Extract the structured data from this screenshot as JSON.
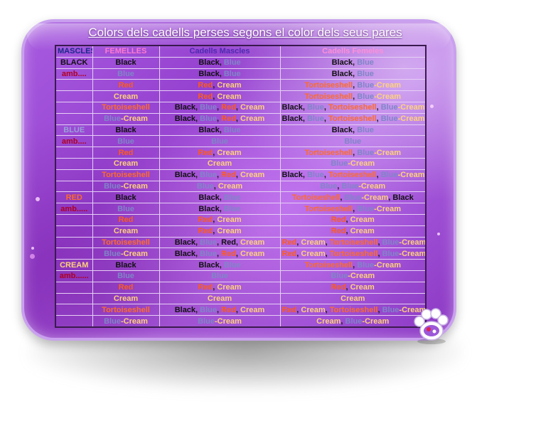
{
  "title": "Colors dels cadells perses segons el color dels seus pares",
  "headers": [
    "MASCLES",
    "FEMELLES",
    "Cadells Mascles",
    "Cadells Femeles"
  ],
  "rows": [
    [
      [
        {
          "t": "BLACK",
          "c": "blackhdr"
        }
      ],
      [
        {
          "t": "Black",
          "c": "black"
        }
      ],
      [
        {
          "t": "Black",
          "c": "black"
        },
        {
          "t": ", ",
          "c": "sep"
        },
        {
          "t": "Blue",
          "c": "blue"
        }
      ],
      [
        {
          "t": "Black",
          "c": "black"
        },
        {
          "t": ", ",
          "c": "sep"
        },
        {
          "t": "Blue",
          "c": "blue"
        }
      ]
    ],
    [
      [
        {
          "t": "amb....",
          "c": "amb"
        }
      ],
      [
        {
          "t": "Blue",
          "c": "blue"
        }
      ],
      [
        {
          "t": "Black",
          "c": "black"
        },
        {
          "t": ", ",
          "c": "sep"
        },
        {
          "t": "Blue",
          "c": "blue"
        }
      ],
      [
        {
          "t": "Black",
          "c": "black"
        },
        {
          "t": ", ",
          "c": "sep"
        },
        {
          "t": "Blue",
          "c": "blue"
        }
      ]
    ],
    [
      [],
      [
        {
          "t": "Red",
          "c": "red"
        }
      ],
      [
        {
          "t": "Red",
          "c": "red"
        },
        {
          "t": ", ",
          "c": "sep"
        },
        {
          "t": "Cream",
          "c": "cream"
        }
      ],
      [
        {
          "t": "Tortoiseshell",
          "c": "tort"
        },
        {
          "t": ", ",
          "c": "sep"
        },
        {
          "t": "Blue",
          "c": "blue"
        },
        {
          "t": "-",
          "c": "cream"
        },
        {
          "t": "Cream",
          "c": "cream"
        }
      ]
    ],
    [
      [],
      [
        {
          "t": "Cream",
          "c": "cream"
        }
      ],
      [
        {
          "t": "Red",
          "c": "red"
        },
        {
          "t": ", ",
          "c": "sep"
        },
        {
          "t": "Cream",
          "c": "cream"
        }
      ],
      [
        {
          "t": "Tortoiseshell",
          "c": "tort"
        },
        {
          "t": ", ",
          "c": "sep"
        },
        {
          "t": "Blue",
          "c": "blue"
        },
        {
          "t": "-",
          "c": "cream"
        },
        {
          "t": "Cream",
          "c": "cream"
        }
      ]
    ],
    [
      [],
      [
        {
          "t": "Tortoiseshell",
          "c": "tort"
        }
      ],
      [
        {
          "t": "Black",
          "c": "black"
        },
        {
          "t": ", ",
          "c": "sep"
        },
        {
          "t": "Blue",
          "c": "blue"
        },
        {
          "t": ", ",
          "c": "sep"
        },
        {
          "t": "Red",
          "c": "red"
        },
        {
          "t": ", ",
          "c": "sep"
        },
        {
          "t": "Cream",
          "c": "cream"
        }
      ],
      [
        {
          "t": "Black",
          "c": "black"
        },
        {
          "t": ", ",
          "c": "sep"
        },
        {
          "t": "Blue",
          "c": "blue"
        },
        {
          "t": ", ",
          "c": "sep"
        },
        {
          "t": "Tortoiseshell",
          "c": "tort"
        },
        {
          "t": ", ",
          "c": "sep"
        },
        {
          "t": "Blue",
          "c": "blue"
        },
        {
          "t": "-",
          "c": "cream"
        },
        {
          "t": "Cream",
          "c": "cream"
        }
      ]
    ],
    [
      [],
      [
        {
          "t": "Blue",
          "c": "blue"
        },
        {
          "t": "-",
          "c": "cream"
        },
        {
          "t": "Cream",
          "c": "cream"
        }
      ],
      [
        {
          "t": "Black",
          "c": "black"
        },
        {
          "t": ", ",
          "c": "sep"
        },
        {
          "t": "Blue",
          "c": "blue"
        },
        {
          "t": ", ",
          "c": "sep"
        },
        {
          "t": "Red",
          "c": "red"
        },
        {
          "t": ", ",
          "c": "sep"
        },
        {
          "t": "Cream",
          "c": "cream"
        }
      ],
      [
        {
          "t": "Black",
          "c": "black"
        },
        {
          "t": ", ",
          "c": "sep"
        },
        {
          "t": "Blue",
          "c": "blue"
        },
        {
          "t": ", ",
          "c": "sep"
        },
        {
          "t": "Tortoiseshell",
          "c": "tort"
        },
        {
          "t": ", ",
          "c": "sep"
        },
        {
          "t": "Blue",
          "c": "blue"
        },
        {
          "t": "-",
          "c": "cream"
        },
        {
          "t": "Cream",
          "c": "cream"
        }
      ]
    ],
    [
      [
        {
          "t": "BLUE",
          "c": "bluehdr"
        }
      ],
      [
        {
          "t": "Black",
          "c": "black"
        }
      ],
      [
        {
          "t": "Black",
          "c": "black"
        },
        {
          "t": ", ",
          "c": "sep"
        },
        {
          "t": "Blue",
          "c": "blue"
        }
      ],
      [
        {
          "t": "Black",
          "c": "black"
        },
        {
          "t": ", ",
          "c": "sep"
        },
        {
          "t": "Blue",
          "c": "blue"
        }
      ]
    ],
    [
      [
        {
          "t": "amb....",
          "c": "amb"
        }
      ],
      [
        {
          "t": "Blue",
          "c": "blue"
        }
      ],
      [
        {
          "t": "Blue",
          "c": "blue"
        }
      ],
      [
        {
          "t": "Blue",
          "c": "blue"
        }
      ]
    ],
    [
      [],
      [
        {
          "t": "Red",
          "c": "red"
        }
      ],
      [
        {
          "t": "Red",
          "c": "red"
        },
        {
          "t": ", ",
          "c": "sep"
        },
        {
          "t": "Cream",
          "c": "cream"
        }
      ],
      [
        {
          "t": "Tortoiseshell",
          "c": "tort"
        },
        {
          "t": ", ",
          "c": "sep"
        },
        {
          "t": "Blue",
          "c": "blue"
        },
        {
          "t": "-",
          "c": "cream"
        },
        {
          "t": "Cream",
          "c": "cream"
        }
      ]
    ],
    [
      [],
      [
        {
          "t": "Cream",
          "c": "cream"
        }
      ],
      [
        {
          "t": "Cream",
          "c": "cream"
        }
      ],
      [
        {
          "t": "Blue",
          "c": "blue"
        },
        {
          "t": "-",
          "c": "cream"
        },
        {
          "t": "Cream",
          "c": "cream"
        }
      ]
    ],
    [
      [],
      [
        {
          "t": "Tortoiseshell",
          "c": "tort"
        }
      ],
      [
        {
          "t": "Black",
          "c": "black"
        },
        {
          "t": ", ",
          "c": "sep"
        },
        {
          "t": "Blue",
          "c": "blue"
        },
        {
          "t": ", ",
          "c": "sep"
        },
        {
          "t": "Red",
          "c": "red"
        },
        {
          "t": ", ",
          "c": "sep"
        },
        {
          "t": "Cream",
          "c": "cream"
        }
      ],
      [
        {
          "t": "Black",
          "c": "black"
        },
        {
          "t": ", ",
          "c": "sep"
        },
        {
          "t": "Blue",
          "c": "blue"
        },
        {
          "t": ", ",
          "c": "sep"
        },
        {
          "t": "Tortoiseshell",
          "c": "tort"
        },
        {
          "t": ", ",
          "c": "sep"
        },
        {
          "t": "Blue",
          "c": "blue"
        },
        {
          "t": "-",
          "c": "cream"
        },
        {
          "t": "Cream",
          "c": "cream"
        }
      ]
    ],
    [
      [],
      [
        {
          "t": "Blue",
          "c": "blue"
        },
        {
          "t": "-",
          "c": "cream"
        },
        {
          "t": "Cream",
          "c": "cream"
        }
      ],
      [
        {
          "t": "Blue",
          "c": "blue"
        },
        {
          "t": ", ",
          "c": "sep"
        },
        {
          "t": "Cream",
          "c": "cream"
        }
      ],
      [
        {
          "t": "Blue",
          "c": "blue"
        },
        {
          "t": ", ",
          "c": "sep"
        },
        {
          "t": "Blue",
          "c": "blue"
        },
        {
          "t": "-",
          "c": "cream"
        },
        {
          "t": "Cream",
          "c": "cream"
        }
      ]
    ],
    [
      [
        {
          "t": "RED",
          "c": "redhdr"
        }
      ],
      [
        {
          "t": "Black",
          "c": "black"
        }
      ],
      [
        {
          "t": "Black",
          "c": "black"
        },
        {
          "t": ", ",
          "c": "sep"
        },
        {
          "t": "Blue",
          "c": "blue"
        }
      ],
      [
        {
          "t": "Tortoiseshell",
          "c": "tort"
        },
        {
          "t": ", ",
          "c": "sep"
        },
        {
          "t": "Blue",
          "c": "blue"
        },
        {
          "t": "-",
          "c": "cream"
        },
        {
          "t": "Cream",
          "c": "cream"
        },
        {
          "t": ", ",
          "c": "sep"
        },
        {
          "t": "Black",
          "c": "black"
        }
      ]
    ],
    [
      [
        {
          "t": "amb.....",
          "c": "amb"
        }
      ],
      [
        {
          "t": "Blue",
          "c": "blue"
        }
      ],
      [
        {
          "t": "Black",
          "c": "black"
        },
        {
          "t": ", ",
          "c": "sep"
        },
        {
          "t": "Blue",
          "c": "blue"
        }
      ],
      [
        {
          "t": "Tortoiseshell",
          "c": "tort"
        },
        {
          "t": ", ",
          "c": "sep"
        },
        {
          "t": "Blue",
          "c": "blue"
        },
        {
          "t": "-",
          "c": "cream"
        },
        {
          "t": "Cream",
          "c": "cream"
        }
      ]
    ],
    [
      [],
      [
        {
          "t": "Red",
          "c": "red"
        }
      ],
      [
        {
          "t": "Red",
          "c": "red"
        },
        {
          "t": ", ",
          "c": "sep"
        },
        {
          "t": "Cream",
          "c": "cream"
        }
      ],
      [
        {
          "t": "Red",
          "c": "red"
        },
        {
          "t": ", ",
          "c": "sep"
        },
        {
          "t": "Cream",
          "c": "cream"
        }
      ]
    ],
    [
      [],
      [
        {
          "t": "Cream",
          "c": "cream"
        }
      ],
      [
        {
          "t": "Red",
          "c": "red"
        },
        {
          "t": ", ",
          "c": "sep"
        },
        {
          "t": "Cream",
          "c": "cream"
        }
      ],
      [
        {
          "t": "Red",
          "c": "red"
        },
        {
          "t": ", ",
          "c": "sep"
        },
        {
          "t": "Cream",
          "c": "cream"
        }
      ]
    ],
    [
      [],
      [
        {
          "t": "Tortoiseshell",
          "c": "tort"
        }
      ],
      [
        {
          "t": "Black",
          "c": "black"
        },
        {
          "t": ", ",
          "c": "sep"
        },
        {
          "t": "Blue",
          "c": "blue"
        },
        {
          "t": ", ",
          "c": "sep"
        },
        {
          "t": "Red",
          "c": "black"
        },
        {
          "t": ", ",
          "c": "sep"
        },
        {
          "t": "Cream",
          "c": "cream"
        }
      ],
      [
        {
          "t": "Red",
          "c": "red"
        },
        {
          "t": ", ",
          "c": "sep"
        },
        {
          "t": "Cream",
          "c": "cream"
        },
        {
          "t": ", ",
          "c": "sep"
        },
        {
          "t": "Tortoiseshell",
          "c": "tort"
        },
        {
          "t": ", ",
          "c": "sep"
        },
        {
          "t": "Blue",
          "c": "blue"
        },
        {
          "t": "-",
          "c": "cream"
        },
        {
          "t": "Cream",
          "c": "cream"
        }
      ]
    ],
    [
      [],
      [
        {
          "t": "Blue",
          "c": "blue"
        },
        {
          "t": "-",
          "c": "cream"
        },
        {
          "t": "Cream",
          "c": "cream"
        }
      ],
      [
        {
          "t": "Black",
          "c": "black"
        },
        {
          "t": ", ",
          "c": "sep"
        },
        {
          "t": "Blue",
          "c": "blue"
        },
        {
          "t": ", ",
          "c": "sep"
        },
        {
          "t": "Red",
          "c": "red"
        },
        {
          "t": ", ",
          "c": "sep"
        },
        {
          "t": "Cream",
          "c": "cream"
        }
      ],
      [
        {
          "t": "Red",
          "c": "red"
        },
        {
          "t": ", ",
          "c": "sep"
        },
        {
          "t": "Cream",
          "c": "cream"
        },
        {
          "t": ", ",
          "c": "sep"
        },
        {
          "t": "Tortoiseshell",
          "c": "tort"
        },
        {
          "t": ", ",
          "c": "sep"
        },
        {
          "t": "Blue",
          "c": "blue"
        },
        {
          "t": "-",
          "c": "cream"
        },
        {
          "t": "Cream",
          "c": "cream"
        }
      ]
    ],
    [
      [
        {
          "t": "CREAM",
          "c": "creamhdr"
        }
      ],
      [
        {
          "t": "Black",
          "c": "black"
        }
      ],
      [
        {
          "t": "Black",
          "c": "black"
        },
        {
          "t": ", ",
          "c": "sep"
        },
        {
          "t": "Blue",
          "c": "blue"
        }
      ],
      [
        {
          "t": "Tortoiseshell",
          "c": "tort"
        },
        {
          "t": ", ",
          "c": "sep"
        },
        {
          "t": "Blue",
          "c": "blue"
        },
        {
          "t": "-",
          "c": "cream"
        },
        {
          "t": "Cream",
          "c": "cream"
        }
      ]
    ],
    [
      [
        {
          "t": "amb......",
          "c": "amb"
        }
      ],
      [
        {
          "t": "Blue",
          "c": "blue"
        }
      ],
      [
        {
          "t": "Blue",
          "c": "blue"
        }
      ],
      [
        {
          "t": "Blue",
          "c": "blue"
        },
        {
          "t": "-",
          "c": "cream"
        },
        {
          "t": "Cream",
          "c": "cream"
        }
      ]
    ],
    [
      [],
      [
        {
          "t": "Red",
          "c": "red"
        }
      ],
      [
        {
          "t": "Red",
          "c": "red"
        },
        {
          "t": ", ",
          "c": "sep"
        },
        {
          "t": "Cream",
          "c": "cream"
        }
      ],
      [
        {
          "t": "Red",
          "c": "red"
        },
        {
          "t": ", ",
          "c": "sep"
        },
        {
          "t": "Cream",
          "c": "cream"
        }
      ]
    ],
    [
      [],
      [
        {
          "t": "Cream",
          "c": "cream"
        }
      ],
      [
        {
          "t": "Cream",
          "c": "cream"
        }
      ],
      [
        {
          "t": "Cream",
          "c": "cream"
        }
      ]
    ],
    [
      [],
      [
        {
          "t": "Tortoiseshell",
          "c": "tort"
        }
      ],
      [
        {
          "t": "Black",
          "c": "black"
        },
        {
          "t": ", ",
          "c": "sep"
        },
        {
          "t": "Blue",
          "c": "blue"
        },
        {
          "t": ", ",
          "c": "sep"
        },
        {
          "t": "Red",
          "c": "red"
        },
        {
          "t": ", ",
          "c": "sep"
        },
        {
          "t": "Cream",
          "c": "cream"
        }
      ],
      [
        {
          "t": "Red",
          "c": "red"
        },
        {
          "t": ", ",
          "c": "sep"
        },
        {
          "t": "Cream",
          "c": "cream"
        },
        {
          "t": ", ",
          "c": "sep"
        },
        {
          "t": "Tortoiseshell",
          "c": "tort"
        },
        {
          "t": ", ",
          "c": "sep"
        },
        {
          "t": "Blue",
          "c": "blue"
        },
        {
          "t": "-",
          "c": "cream"
        },
        {
          "t": "Cream",
          "c": "cream"
        }
      ]
    ],
    [
      [],
      [
        {
          "t": "Blue",
          "c": "blue"
        },
        {
          "t": "-",
          "c": "cream"
        },
        {
          "t": "Cream",
          "c": "cream"
        }
      ],
      [
        {
          "t": "Blue",
          "c": "blue"
        },
        {
          "t": "-",
          "c": "cream"
        },
        {
          "t": "Cream",
          "c": "cream"
        }
      ],
      [
        {
          "t": "Cream",
          "c": "cream"
        },
        {
          "t": ", ",
          "c": "sep"
        },
        {
          "t": "Blue",
          "c": "blue"
        },
        {
          "t": "-",
          "c": "cream"
        },
        {
          "t": "Cream",
          "c": "cream"
        }
      ]
    ]
  ],
  "colors": {
    "card": "#9a48d6",
    "black": "#111111",
    "blue": "#7f86c8",
    "red": "#ff5a1a",
    "cream": "#ffd27a",
    "tortoiseshell": "#ff6a2a",
    "amb": "#b00020"
  },
  "icons": {
    "logo": "paw-logo-icon"
  }
}
